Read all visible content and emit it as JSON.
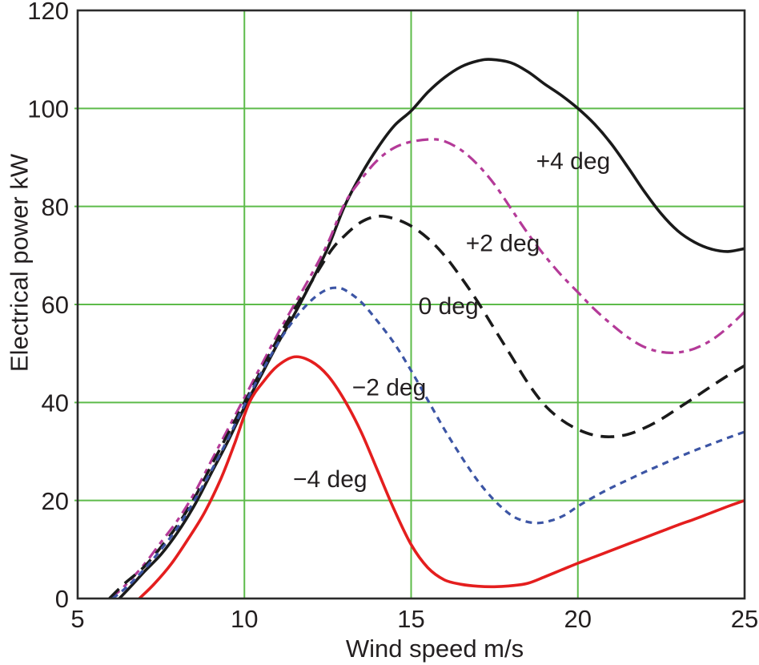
{
  "figure": {
    "x_axis_title": "Wind speed m/s",
    "y_axis_title": "Electrical power kW"
  },
  "chart_data": {
    "type": "line",
    "title": "",
    "xlabel": "Wind speed m/s",
    "ylabel": "Electrical power kW",
    "xlim": [
      5,
      25
    ],
    "ylim": [
      0,
      120
    ],
    "x_ticks": [
      5,
      10,
      15,
      20,
      25
    ],
    "y_ticks": [
      0,
      20,
      40,
      60,
      80,
      100,
      120
    ],
    "grid": true,
    "grid_color": "#5dbb4a",
    "frame_color": "#2b2b2b",
    "text_color": "#231f20",
    "legend_position": "inline-labels",
    "series": [
      {
        "name": "+4 deg",
        "pitch_deg": 4,
        "color": "#1a1a1a",
        "dash": null,
        "width": 3.6,
        "points": [
          [
            6.25,
            0
          ],
          [
            6.6,
            2.5
          ],
          [
            7,
            5.5
          ],
          [
            7.5,
            9
          ],
          [
            8,
            13.5
          ],
          [
            8.5,
            19
          ],
          [
            9,
            25.5
          ],
          [
            9.5,
            32
          ],
          [
            10,
            39
          ],
          [
            10.5,
            45.5
          ],
          [
            11,
            52
          ],
          [
            11.5,
            58
          ],
          [
            12,
            64.5
          ],
          [
            12.5,
            71.5
          ],
          [
            13,
            80
          ],
          [
            13.5,
            86.5
          ],
          [
            14,
            92
          ],
          [
            14.5,
            96.5
          ],
          [
            15,
            99.5
          ],
          [
            15.5,
            103.3
          ],
          [
            16,
            106.3
          ],
          [
            16.5,
            108.5
          ],
          [
            17,
            109.7
          ],
          [
            17.4,
            110
          ],
          [
            18,
            109.3
          ],
          [
            18.5,
            107.5
          ],
          [
            19,
            105
          ],
          [
            19.5,
            102.7
          ],
          [
            20,
            100
          ],
          [
            20.5,
            96.8
          ],
          [
            21,
            92.8
          ],
          [
            21.5,
            88
          ],
          [
            22,
            83
          ],
          [
            22.5,
            78.5
          ],
          [
            23,
            75
          ],
          [
            23.5,
            72.7
          ],
          [
            24,
            71.3
          ],
          [
            24.5,
            70.8
          ],
          [
            25,
            71.4
          ]
        ]
      },
      {
        "name": "+2 deg",
        "pitch_deg": 2,
        "color": "#b43a98",
        "dash": [
          15,
          7,
          6,
          7
        ],
        "width": 3.2,
        "points": [
          [
            5.98,
            0
          ],
          [
            6.4,
            2.5
          ],
          [
            7,
            7
          ],
          [
            7.5,
            11.5
          ],
          [
            8,
            16
          ],
          [
            8.5,
            21.5
          ],
          [
            9,
            28
          ],
          [
            9.5,
            34.5
          ],
          [
            10,
            41
          ],
          [
            10.5,
            47.5
          ],
          [
            11,
            54
          ],
          [
            11.5,
            60
          ],
          [
            12,
            66
          ],
          [
            12.5,
            72.5
          ],
          [
            13,
            80.5
          ],
          [
            13.5,
            85.5
          ],
          [
            14,
            89.5
          ],
          [
            14.5,
            92
          ],
          [
            15,
            93.2
          ],
          [
            15.6,
            93.7
          ],
          [
            16,
            93.3
          ],
          [
            16.5,
            91.5
          ],
          [
            17,
            88.5
          ],
          [
            17.5,
            84.5
          ],
          [
            18,
            79.5
          ],
          [
            18.5,
            74.5
          ],
          [
            19,
            70
          ],
          [
            19.5,
            66
          ],
          [
            20,
            62.5
          ],
          [
            20.5,
            59
          ],
          [
            21,
            56
          ],
          [
            21.5,
            53.3
          ],
          [
            22,
            51.3
          ],
          [
            22.5,
            50.3
          ],
          [
            23,
            50.2
          ],
          [
            23.5,
            51
          ],
          [
            24,
            52.7
          ],
          [
            24.5,
            55.3
          ],
          [
            25,
            58.5
          ]
        ]
      },
      {
        "name": "0 deg",
        "pitch_deg": 0,
        "color": "#1a1a1a",
        "dash": [
          17,
          10
        ],
        "width": 3.6,
        "points": [
          [
            5.95,
            0
          ],
          [
            6.4,
            3
          ],
          [
            7,
            6.5
          ],
          [
            7.5,
            10.5
          ],
          [
            8,
            15
          ],
          [
            8.5,
            20.5
          ],
          [
            9,
            27
          ],
          [
            9.5,
            33.5
          ],
          [
            10,
            40
          ],
          [
            10.5,
            46.5
          ],
          [
            11,
            53
          ],
          [
            11.5,
            59
          ],
          [
            12,
            64.5
          ],
          [
            12.6,
            71
          ],
          [
            13,
            74
          ],
          [
            13.5,
            76.8
          ],
          [
            14,
            78
          ],
          [
            14.5,
            77.5
          ],
          [
            15,
            76
          ],
          [
            15.5,
            73.5
          ],
          [
            16,
            70
          ],
          [
            16.5,
            65.5
          ],
          [
            17,
            60.5
          ],
          [
            17.5,
            55
          ],
          [
            18,
            49.5
          ],
          [
            18.5,
            44
          ],
          [
            19,
            39.5
          ],
          [
            19.5,
            36.5
          ],
          [
            20,
            34.5
          ],
          [
            20.5,
            33.3
          ],
          [
            21,
            33
          ],
          [
            21.5,
            33.5
          ],
          [
            22,
            34.8
          ],
          [
            22.5,
            36.6
          ],
          [
            23,
            38.8
          ],
          [
            23.5,
            41
          ],
          [
            24,
            43.3
          ],
          [
            24.5,
            45.5
          ],
          [
            25,
            47.5
          ]
        ]
      },
      {
        "name": "−2 deg",
        "pitch_deg": -2,
        "color": "#3c55a5",
        "dash": [
          8,
          6.5
        ],
        "width": 3.2,
        "points": [
          [
            6.05,
            0
          ],
          [
            6.5,
            2.5
          ],
          [
            7,
            6
          ],
          [
            7.5,
            10
          ],
          [
            8,
            14.5
          ],
          [
            8.5,
            20
          ],
          [
            9,
            26
          ],
          [
            9.5,
            32.5
          ],
          [
            10,
            39.5
          ],
          [
            10.5,
            46
          ],
          [
            11,
            52
          ],
          [
            11.5,
            57
          ],
          [
            12,
            60.8
          ],
          [
            12.4,
            62.8
          ],
          [
            12.7,
            63.4
          ],
          [
            13,
            63
          ],
          [
            13.5,
            60.5
          ],
          [
            14,
            56.5
          ],
          [
            14.5,
            52
          ],
          [
            15,
            46.5
          ],
          [
            15.5,
            40.5
          ],
          [
            16,
            34.5
          ],
          [
            16.5,
            29
          ],
          [
            17,
            24
          ],
          [
            17.5,
            20
          ],
          [
            18,
            17
          ],
          [
            18.4,
            15.8
          ],
          [
            18.8,
            15.4
          ],
          [
            19.2,
            15.9
          ],
          [
            19.6,
            17
          ],
          [
            20,
            18.8
          ],
          [
            20.5,
            20.8
          ],
          [
            21,
            22.6
          ],
          [
            21.5,
            24.2
          ],
          [
            22,
            25.8
          ],
          [
            22.5,
            27.3
          ],
          [
            23,
            28.8
          ],
          [
            23.5,
            30.2
          ],
          [
            24,
            31.5
          ],
          [
            24.5,
            32.8
          ],
          [
            25,
            34
          ]
        ]
      },
      {
        "name": "−4 deg",
        "pitch_deg": -4,
        "color": "#e41e1e",
        "dash": null,
        "width": 3.6,
        "points": [
          [
            6.85,
            0
          ],
          [
            7.3,
            3
          ],
          [
            7.8,
            7
          ],
          [
            8.3,
            12
          ],
          [
            8.8,
            17.5
          ],
          [
            9.3,
            24.5
          ],
          [
            9.7,
            31.5
          ],
          [
            10.15,
            40
          ],
          [
            10.6,
            44.5
          ],
          [
            11,
            47.5
          ],
          [
            11.5,
            49.3
          ],
          [
            12,
            48.4
          ],
          [
            12.5,
            45.5
          ],
          [
            13,
            40.5
          ],
          [
            13.5,
            34
          ],
          [
            14,
            26
          ],
          [
            14.5,
            18
          ],
          [
            15,
            11
          ],
          [
            15.5,
            6.3
          ],
          [
            16,
            3.8
          ],
          [
            16.5,
            2.9
          ],
          [
            17,
            2.5
          ],
          [
            17.5,
            2.4
          ],
          [
            18,
            2.6
          ],
          [
            18.5,
            3.1
          ],
          [
            19,
            4.4
          ],
          [
            19.5,
            5.8
          ],
          [
            20,
            7.2
          ],
          [
            20.5,
            8.5
          ],
          [
            21,
            9.8
          ],
          [
            21.5,
            11.1
          ],
          [
            22,
            12.4
          ],
          [
            22.5,
            13.7
          ],
          [
            23,
            15
          ],
          [
            23.5,
            16.2
          ],
          [
            24,
            17.5
          ],
          [
            24.5,
            18.8
          ],
          [
            25,
            20
          ]
        ]
      }
    ],
    "annotations": [
      {
        "text": "+4 deg",
        "x": 19.86,
        "y": 89.4
      },
      {
        "text": "+2 deg",
        "x": 17.75,
        "y": 72.6
      },
      {
        "text": "0 deg",
        "x": 16.12,
        "y": 59.8
      },
      {
        "text": "−2 deg",
        "x": 14.34,
        "y": 43.2
      },
      {
        "text": "−4 deg",
        "x": 12.57,
        "y": 24.5
      }
    ]
  }
}
